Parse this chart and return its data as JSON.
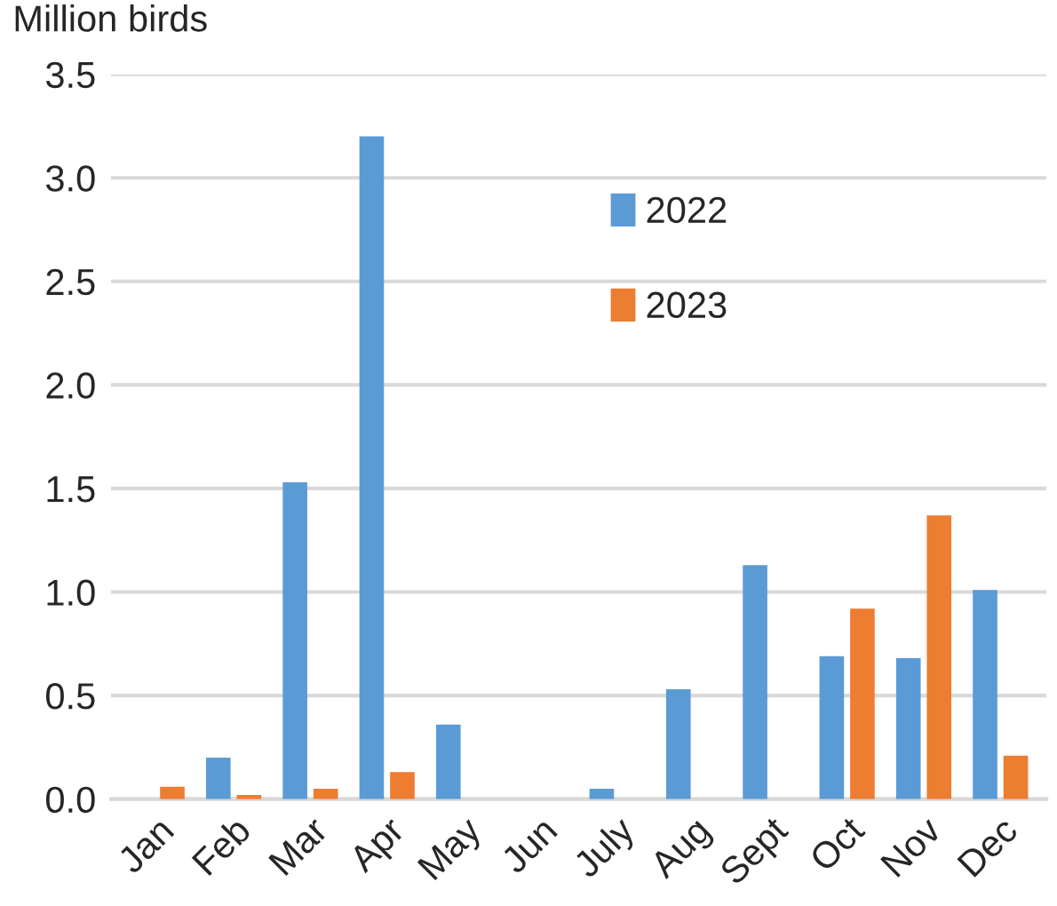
{
  "chart_data": {
    "type": "bar",
    "ylabel": "Million birds",
    "categories": [
      "Jan",
      "Feb",
      "Mar",
      "Apr",
      "May",
      "Jun",
      "July",
      "Aug",
      "Sept",
      "Oct",
      "Nov",
      "Dec"
    ],
    "series": [
      {
        "name": "2022",
        "color": "#5b9bd5",
        "values": [
          null,
          0.2,
          1.53,
          3.2,
          0.36,
          null,
          0.05,
          0.53,
          1.13,
          0.69,
          0.68,
          1.01
        ]
      },
      {
        "name": "2023",
        "color": "#ed7d31",
        "values": [
          0.06,
          0.02,
          0.05,
          0.13,
          null,
          null,
          null,
          null,
          null,
          0.92,
          1.37,
          0.21
        ]
      }
    ],
    "ylim": [
      0,
      3.5
    ],
    "yticks": [
      {
        "value": 0,
        "label": "0.0"
      },
      {
        "value": 0.5,
        "label": "0.5"
      },
      {
        "value": 1,
        "label": "1.0"
      },
      {
        "value": 1.5,
        "label": "1.5"
      },
      {
        "value": 2,
        "label": "2.0"
      },
      {
        "value": 2.5,
        "label": "2.5"
      },
      {
        "value": 3,
        "label": "3.0"
      },
      {
        "value": 3.5,
        "label": "3.5"
      }
    ],
    "grid": "y",
    "legend": "top"
  }
}
